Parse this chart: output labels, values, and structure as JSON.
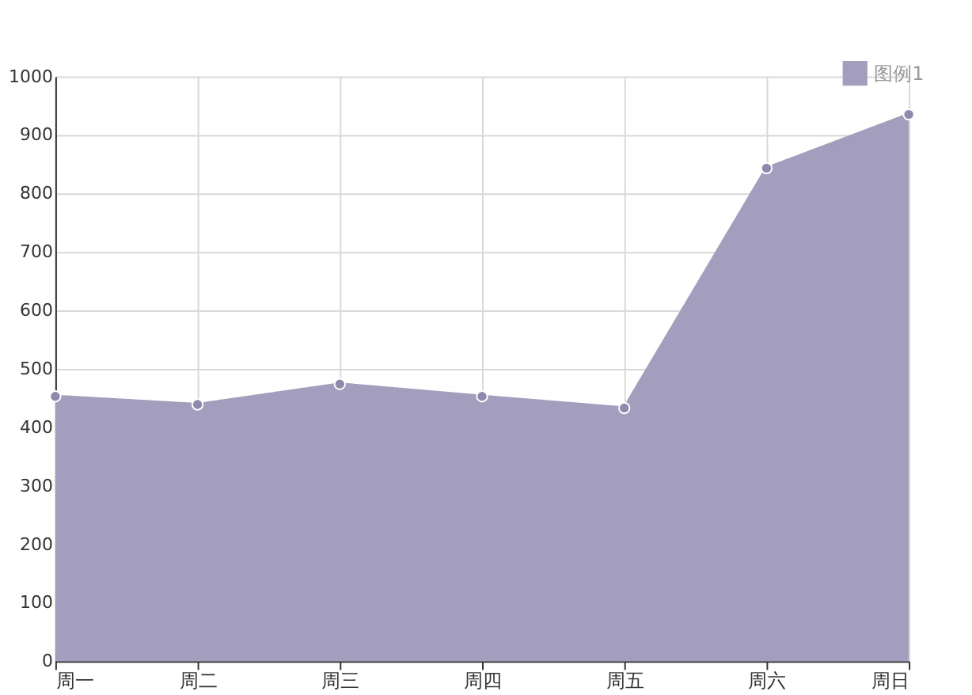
{
  "chart_data": {
    "type": "area",
    "categories": [
      "周一",
      "周二",
      "周三",
      "周四",
      "周五",
      "周六",
      "周日"
    ],
    "series": [
      {
        "name": "图例1",
        "color": "#a39ebd",
        "values": [
          453,
          439,
          474,
          453,
          433,
          843,
          935
        ]
      }
    ],
    "ylim": [
      0,
      1000
    ],
    "yticks": [
      0,
      100,
      200,
      300,
      400,
      500,
      600,
      700,
      800,
      900,
      1000
    ],
    "grid": true,
    "legend": "top right",
    "marker": "circle",
    "line_style": "solid"
  }
}
